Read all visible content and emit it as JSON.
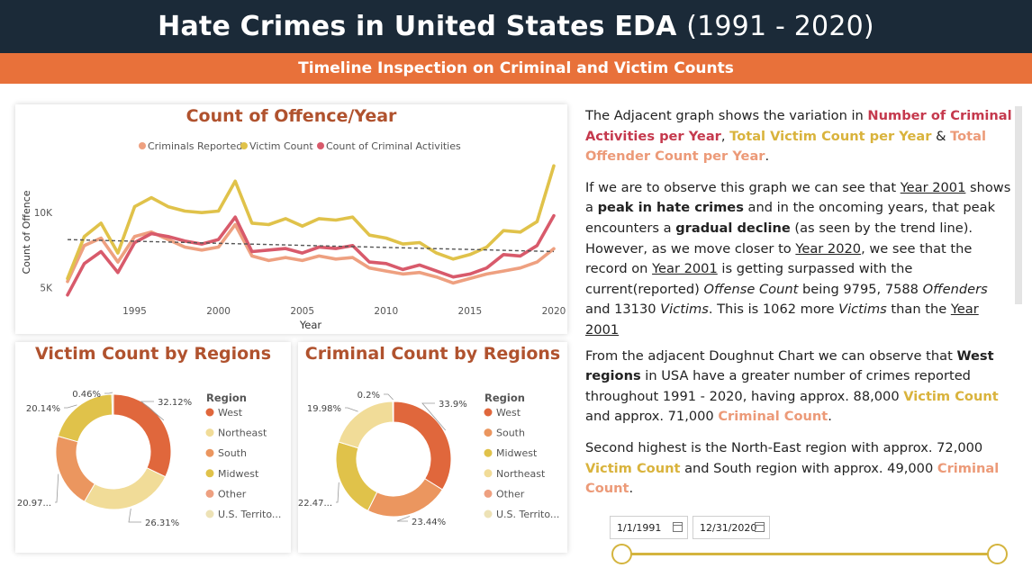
{
  "header": {
    "title_main": "Hate Crimes in United States EDA",
    "title_years": "(1991 - 2020)",
    "subtitle": "Timeline Inspection on Criminal and Victim Counts"
  },
  "colors": {
    "header_bg": "#1b2a38",
    "accent_orange": "#e8713a",
    "title_brown": "#b0522e",
    "criminals": "#eea080",
    "victims": "#e0c24a",
    "activities": "#d85a6b"
  },
  "line_chart": {
    "title": "Count of Offence/Year",
    "legend": [
      "Criminals Reported",
      "Victim Count",
      "Count of Criminal Activities"
    ],
    "ylabel": "Count of Offence",
    "xlabel": "Year",
    "yticks": [
      "10K",
      "5K"
    ],
    "xticks": [
      "1995",
      "2000",
      "2005",
      "2010",
      "2015",
      "2020"
    ]
  },
  "victim_donut": {
    "title": "Victim Count by Regions",
    "legend_title": "Region",
    "legend": [
      "West",
      "Northeast",
      "South",
      "Midwest",
      "Other",
      "U.S. Territo..."
    ],
    "labels": [
      "32.12%",
      "26.31%",
      "20.97...",
      "20.14%",
      "0.46%"
    ]
  },
  "criminal_donut": {
    "title": "Criminal Count by Regions",
    "legend_title": "Region",
    "legend": [
      "West",
      "South",
      "Midwest",
      "Northeast",
      "Other",
      "U.S. Territo..."
    ],
    "labels": [
      "33.9%",
      "23.44%",
      "22.47...",
      "19.98%",
      "0.2%"
    ]
  },
  "chart_data": [
    {
      "type": "line",
      "title": "Count of Offence/Year",
      "xlabel": "Year",
      "ylabel": "Count of Offence",
      "x": [
        1991,
        1992,
        1993,
        1994,
        1995,
        1996,
        1997,
        1998,
        1999,
        2000,
        2001,
        2002,
        2003,
        2004,
        2005,
        2006,
        2007,
        2008,
        2009,
        2010,
        2011,
        2012,
        2013,
        2014,
        2015,
        2016,
        2017,
        2018,
        2019,
        2020
      ],
      "series": [
        {
          "name": "Criminals Reported",
          "values": [
            5400,
            7800,
            8300,
            6700,
            8400,
            8700,
            8200,
            7700,
            7500,
            7700,
            9200,
            7100,
            6800,
            7000,
            6800,
            7100,
            6900,
            7000,
            6300,
            6100,
            5900,
            6000,
            5700,
            5300,
            5600,
            5900,
            6100,
            6300,
            6700,
            7588
          ]
        },
        {
          "name": "Victim Count",
          "values": [
            5600,
            8400,
            9300,
            7300,
            10400,
            11000,
            10400,
            10100,
            10000,
            10100,
            12100,
            9300,
            9200,
            9600,
            9100,
            9600,
            9500,
            9700,
            8500,
            8300,
            7900,
            8000,
            7300,
            6900,
            7200,
            7700,
            8800,
            8700,
            9400,
            13130
          ]
        },
        {
          "name": "Count of Criminal Activities",
          "values": [
            4500,
            6600,
            7400,
            6000,
            8000,
            8600,
            8400,
            8100,
            7900,
            8200,
            9700,
            7400,
            7500,
            7600,
            7300,
            7700,
            7600,
            7800,
            6700,
            6600,
            6200,
            6500,
            6100,
            5700,
            5900,
            6300,
            7200,
            7100,
            7800,
            9795
          ]
        }
      ],
      "trend": {
        "start": 8200,
        "end": 7400
      },
      "ylim": [
        4000,
        13500
      ],
      "yticks": [
        5000,
        10000
      ],
      "xticks": [
        1995,
        2000,
        2005,
        2010,
        2015,
        2020
      ],
      "legend_position": "top"
    },
    {
      "type": "pie",
      "title": "Victim Count by Regions",
      "categories": [
        "West",
        "Northeast",
        "South",
        "Midwest",
        "Other",
        "U.S. Territories"
      ],
      "values": [
        32.12,
        26.31,
        20.97,
        20.14,
        0.0,
        0.46
      ],
      "colors": [
        "#e0673c",
        "#f1dc98",
        "#eb965f",
        "#e0c24a",
        "#eea080",
        "#ede2b6"
      ]
    },
    {
      "type": "pie",
      "title": "Criminal Count by Regions",
      "categories": [
        "West",
        "South",
        "Midwest",
        "Northeast",
        "Other",
        "U.S. Territories"
      ],
      "values": [
        33.9,
        23.44,
        22.47,
        19.98,
        0.0,
        0.2
      ],
      "colors": [
        "#e0673c",
        "#eb965f",
        "#e0c24a",
        "#f1dc98",
        "#eea080",
        "#ede2b6"
      ]
    }
  ],
  "narrative": {
    "p1": [
      {
        "t": "The Adjacent graph shows the variation in ",
        "s": ""
      },
      {
        "t": "Number of Criminal Activities per Year",
        "s": "hl-red"
      },
      {
        "t": ", ",
        "s": ""
      },
      {
        "t": "Total Victim Count per Year",
        "s": "hl-yel"
      },
      {
        "t": " & ",
        "s": ""
      },
      {
        "t": "Total Offender Count per Year",
        "s": "hl-pk"
      },
      {
        "t": ".",
        "s": ""
      }
    ],
    "p2": [
      {
        "t": "If we are to observe this graph we can see that ",
        "s": ""
      },
      {
        "t": "Year 2001",
        "s": "u"
      },
      {
        "t": " shows a ",
        "s": ""
      },
      {
        "t": "peak in hate crimes",
        "s": "b"
      },
      {
        "t": " and in the oncoming years, that peak encounters a ",
        "s": ""
      },
      {
        "t": "gradual decline",
        "s": "b"
      },
      {
        "t": " (as seen by the trend line). However, as we move closer to ",
        "s": ""
      },
      {
        "t": "Year 2020",
        "s": "u"
      },
      {
        "t": ", we see that the record on ",
        "s": ""
      },
      {
        "t": "Year 2001",
        "s": "u"
      },
      {
        "t": " is getting surpassed with the current(reported) ",
        "s": ""
      },
      {
        "t": "Offense Count",
        "s": "i"
      },
      {
        "t": " being 9795, 7588 ",
        "s": ""
      },
      {
        "t": "Offenders",
        "s": "i"
      },
      {
        "t": " and 13130 ",
        "s": ""
      },
      {
        "t": "Victims",
        "s": "i"
      },
      {
        "t": ". This is 1062 more ",
        "s": ""
      },
      {
        "t": "Victims",
        "s": "i"
      },
      {
        "t": " than the ",
        "s": ""
      },
      {
        "t": "Year 2001",
        "s": "u"
      },
      {
        "t": "",
        "s": ""
      }
    ],
    "p3": [
      {
        "t": "From the adjacent Doughnut Chart we can observe that ",
        "s": ""
      },
      {
        "t": "West regions",
        "s": "b"
      },
      {
        "t": " in USA have a greater number of crimes reported throughout 1991 - 2020, having approx. 88,000 ",
        "s": ""
      },
      {
        "t": "Victim Count",
        "s": "hl-yel"
      },
      {
        "t": " and approx. 71,000 ",
        "s": ""
      },
      {
        "t": "Criminal Count",
        "s": "hl-pk"
      },
      {
        "t": ".",
        "s": ""
      }
    ],
    "p4": [
      {
        "t": "Second highest is the North-East region with approx. 72,000 ",
        "s": ""
      },
      {
        "t": "Victim Count",
        "s": "hl-yel"
      },
      {
        "t": " and South region with approx. 49,000 ",
        "s": ""
      },
      {
        "t": "Criminal Count",
        "s": "hl-pk"
      },
      {
        "t": ".",
        "s": ""
      }
    ]
  },
  "slicer": {
    "start_date": "1/1/1991",
    "end_date": "12/31/2020",
    "range_start": 0.0,
    "range_end": 1.0
  }
}
